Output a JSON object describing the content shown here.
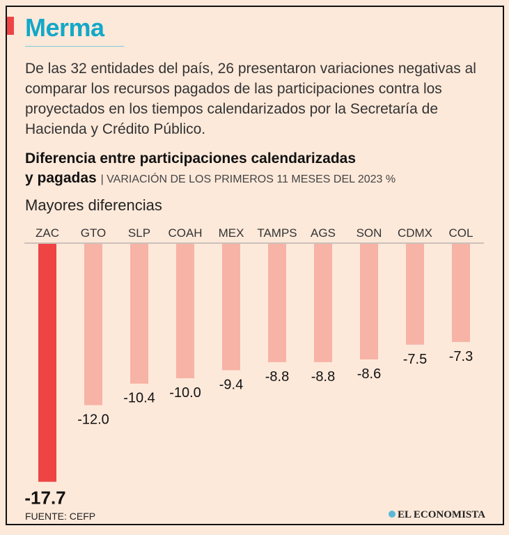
{
  "header": {
    "title": "Merma",
    "description": "De las 32 entidades del país, 26 presentaron variaciones negativas al comparar los recursos pagados de las participaciones contra los proyectados en los tiempos calendarizados por la Secretaría de Hacienda y Crédito Público."
  },
  "chart_data": {
    "type": "bar",
    "title": "Diferencia entre participaciones calendarizadas",
    "title_line2": "y pagadas",
    "subtitle": "VARIACIÓN DE LOS PRIMEROS 11 MESES DEL 2023 %",
    "section_label": "Mayores diferencias",
    "categories": [
      "ZAC",
      "GTO",
      "SLP",
      "COAH",
      "MEX",
      "TAMPS",
      "AGS",
      "SON",
      "CDMX",
      "COL"
    ],
    "values": [
      -17.7,
      -12.0,
      -10.4,
      -10.0,
      -9.4,
      -8.8,
      -8.8,
      -8.6,
      -7.5,
      -7.3
    ],
    "labels": [
      "-17.7",
      "-12.0",
      "-10.4",
      "-10.0",
      "-9.4",
      "-8.8",
      "-8.8",
      "-8.6",
      "-7.5",
      "-7.3"
    ],
    "highlight_color": "#ef4444",
    "bar_color": "#f7b3a6",
    "ylim": [
      -17.7,
      0
    ]
  },
  "footer": {
    "source": "FUENTE: CEFP",
    "brand": "EL ECONOMISTA"
  }
}
